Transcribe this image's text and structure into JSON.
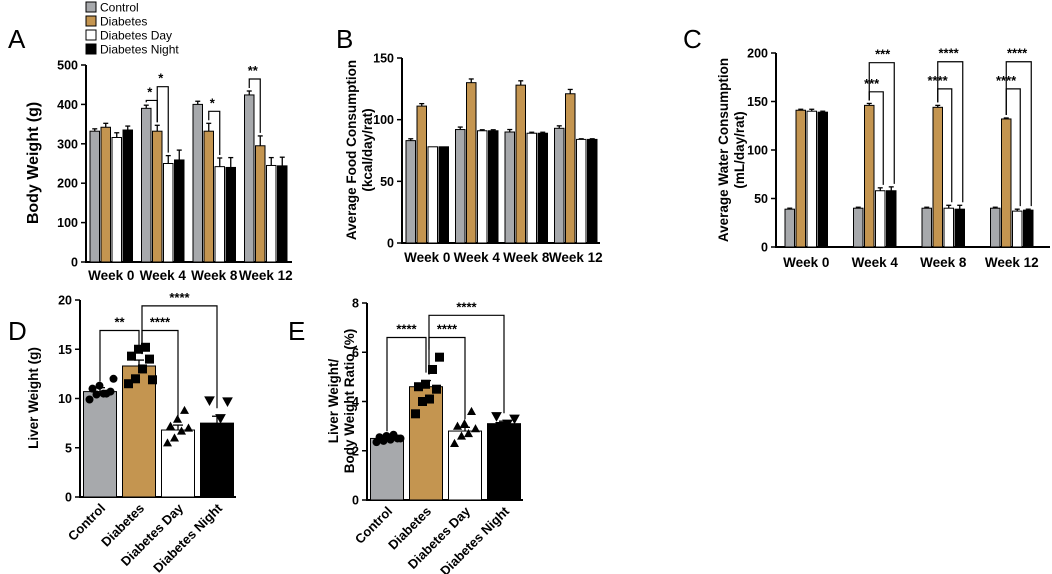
{
  "colors": {
    "control": "#a7a9ac",
    "diabetes": "#c49550",
    "diabetes_day": "#ffffff",
    "diabetes_night": "#000000"
  },
  "legend": [
    {
      "label": "Control",
      "color": "#a7a9ac"
    },
    {
      "label": "Diabetes",
      "color": "#c49550"
    },
    {
      "label": "Diabetes Day",
      "color": "#ffffff"
    },
    {
      "label": "Diabetes Night",
      "color": "#000000"
    }
  ],
  "chart_data": [
    {
      "panel": "A",
      "type": "bar",
      "ylabel": "Body  Weight (g)",
      "ylim": [
        0,
        500
      ],
      "yticks": [
        0,
        100,
        200,
        300,
        400,
        500
      ],
      "categories": [
        "Week 0",
        "Week 4",
        "Week 8",
        "Week 12"
      ],
      "series": [
        {
          "name": "Control",
          "values": [
            332,
            390,
            400,
            424
          ],
          "errors": [
            6,
            8,
            8,
            10
          ]
        },
        {
          "name": "Diabetes",
          "values": [
            342,
            332,
            332,
            295
          ],
          "errors": [
            10,
            15,
            20,
            25
          ]
        },
        {
          "name": "Diabetes Day",
          "values": [
            316,
            250,
            242,
            245
          ],
          "errors": [
            12,
            20,
            22,
            20
          ]
        },
        {
          "name": "Diabetes Night",
          "values": [
            335,
            259,
            240,
            244
          ],
          "errors": [
            10,
            25,
            25,
            22
          ]
        }
      ],
      "significance": [
        {
          "category": 1,
          "from": 0,
          "to": 1,
          "label": "*"
        },
        {
          "category": 1,
          "from": 1,
          "to": 2,
          "label": "*"
        },
        {
          "category": 2,
          "from": 1,
          "to": 2,
          "label": "*"
        },
        {
          "category": 3,
          "from": 0,
          "to": 1,
          "label": "**"
        }
      ]
    },
    {
      "panel": "B",
      "type": "bar",
      "ylabel": "Average Food Consumption",
      "ylabel2": "(kcal/day/rat)",
      "ylim": [
        0,
        150
      ],
      "yticks": [
        0,
        50,
        100,
        150
      ],
      "categories": [
        "Week 0",
        "Week 4",
        "Week 8",
        "Week 12"
      ],
      "series": [
        {
          "name": "Control",
          "values": [
            83,
            92,
            90,
            93
          ],
          "errors": [
            1.5,
            2,
            2,
            2
          ]
        },
        {
          "name": "Diabetes",
          "values": [
            111,
            130,
            128,
            121
          ],
          "errors": [
            2,
            3,
            3.5,
            3.5
          ]
        },
        {
          "name": "Diabetes Day",
          "values": [
            78,
            91,
            89,
            84
          ],
          "errors": [
            0,
            0.8,
            0.8,
            0.5
          ]
        },
        {
          "name": "Diabetes Night",
          "values": [
            78,
            91,
            89,
            84
          ],
          "errors": [
            0,
            0.8,
            0.8,
            0.5
          ]
        }
      ],
      "significance": []
    },
    {
      "panel": "C",
      "type": "bar",
      "ylabel": "Average Water Consumption",
      "ylabel2": "(mL/day/rat)",
      "ylim": [
        0,
        200
      ],
      "yticks": [
        0,
        50,
        100,
        150,
        200
      ],
      "categories": [
        "Week 0",
        "Week 4",
        "Week 8",
        "Week 12"
      ],
      "series": [
        {
          "name": "Control",
          "values": [
            39,
            40,
            40,
            40
          ],
          "errors": [
            1,
            1,
            1,
            1
          ]
        },
        {
          "name": "Diabetes",
          "values": [
            141,
            146,
            144,
            132
          ],
          "errors": [
            1,
            2,
            2,
            1
          ]
        },
        {
          "name": "Diabetes Day",
          "values": [
            140,
            58,
            40,
            37
          ],
          "errors": [
            2,
            3,
            3,
            2
          ]
        },
        {
          "name": "Diabetes Night",
          "values": [
            139,
            58,
            39,
            38
          ],
          "errors": [
            1,
            4,
            4,
            1
          ]
        }
      ],
      "significance": [
        {
          "category": 1,
          "from": 1,
          "to": 2,
          "label": "***",
          "level": 0
        },
        {
          "category": 1,
          "from": 1,
          "to": 3,
          "label": "***",
          "level": 1
        },
        {
          "category": 2,
          "from": 1,
          "to": 2,
          "label": "****",
          "level": 0
        },
        {
          "category": 2,
          "from": 1,
          "to": 3,
          "label": "****",
          "level": 1
        },
        {
          "category": 3,
          "from": 1,
          "to": 2,
          "label": "****",
          "level": 0
        },
        {
          "category": 3,
          "from": 1,
          "to": 3,
          "label": "****",
          "level": 1
        }
      ]
    },
    {
      "panel": "D",
      "type": "bar",
      "ylabel": "Liver  Weight (g)",
      "ylim": [
        0,
        20
      ],
      "yticks": [
        0,
        5,
        10,
        15,
        20
      ],
      "categories": [
        "Control",
        "Diabetes",
        "Diabetes Day",
        "Diabetes Night"
      ],
      "values": [
        10.7,
        13.3,
        6.8,
        7.5
      ],
      "errors": [
        0.4,
        0.6,
        0.5,
        0.7
      ],
      "points": [
        [
          9.9,
          10.4,
          10.5,
          10.7,
          11.0,
          11.3,
          10.5,
          12.0
        ],
        [
          11.5,
          12.0,
          13.0,
          14.0,
          14.3,
          15.0,
          15.2,
          11.9
        ],
        [
          5.5,
          6.0,
          6.7,
          7.0,
          7.2,
          7.9,
          8.8
        ],
        [
          6.0,
          7.0,
          8.0,
          9.7,
          9.8
        ]
      ],
      "markers": [
        "circle",
        "square",
        "triangle-up",
        "triangle-down"
      ],
      "significance": [
        {
          "from": 0,
          "to": 1,
          "label": "**"
        },
        {
          "from": 1,
          "to": 2,
          "label": "****"
        },
        {
          "from": 1,
          "to": 3,
          "label": "****"
        }
      ]
    },
    {
      "panel": "E",
      "type": "bar",
      "ylabel": "Liver Weight/",
      "ylabel2": "Body Weight Ratio (%)",
      "ylim": [
        0,
        8
      ],
      "yticks": [
        0,
        2,
        4,
        6,
        8
      ],
      "categories": [
        "Control",
        "Diabetes",
        "Diabetes Day",
        "Diabetes Night"
      ],
      "values": [
        2.5,
        4.6,
        2.8,
        3.1
      ],
      "errors": [
        0.05,
        0.25,
        0.15,
        0.1
      ],
      "points": [
        [
          2.35,
          2.4,
          2.45,
          2.5,
          2.55,
          2.6,
          2.65,
          2.5
        ],
        [
          3.5,
          4.0,
          4.1,
          4.5,
          4.6,
          4.7,
          5.3,
          5.8
        ],
        [
          2.3,
          2.6,
          2.7,
          2.9,
          3.0,
          3.1,
          3.6
        ],
        [
          2.9,
          3.0,
          3.1,
          3.3,
          3.4
        ]
      ],
      "markers": [
        "circle",
        "square",
        "triangle-up",
        "triangle-down"
      ],
      "significance": [
        {
          "from": 0,
          "to": 1,
          "label": "****"
        },
        {
          "from": 1,
          "to": 2,
          "label": "****"
        },
        {
          "from": 1,
          "to": 3,
          "label": "****"
        }
      ]
    }
  ]
}
